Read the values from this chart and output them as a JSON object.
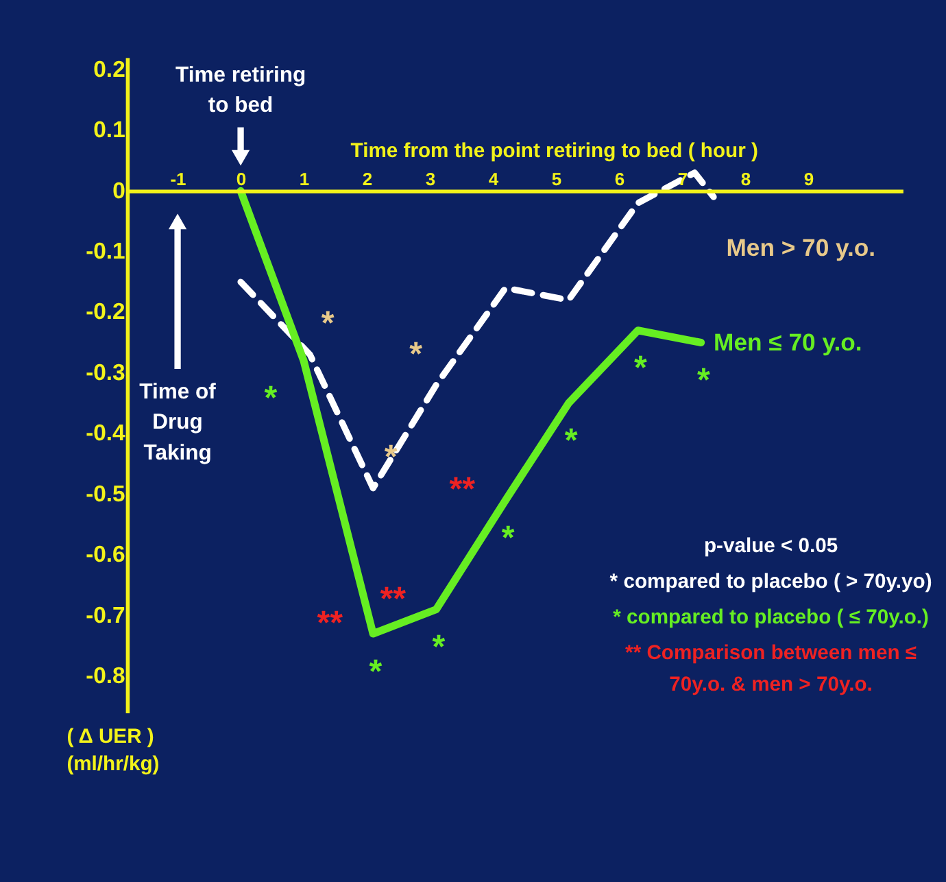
{
  "chart_data": {
    "type": "line",
    "xlabel": "Time from the point retiring to bed ( hour )",
    "ylabel": "( Δ UER )\n(ml/hr/kg)",
    "xlim": [
      -1.8,
      10.5
    ],
    "xticks": [
      -1,
      0,
      1,
      2,
      3,
      4,
      5,
      6,
      7,
      8,
      9
    ],
    "ylim": [
      -0.86,
      0.22
    ],
    "yticks": [
      0.2,
      0.1,
      0,
      -0.1,
      -0.2,
      -0.3,
      -0.4,
      -0.5,
      -0.6,
      -0.7,
      -0.8
    ],
    "grid": false,
    "marker": "none",
    "series": [
      {
        "name": "Men > 70 y.o.",
        "color": "#ffffff",
        "line_style": "dashed",
        "x": [
          0,
          1.1,
          2.1,
          3.1,
          4.2,
          5.2,
          6.3,
          7.2,
          7.5
        ],
        "values": [
          -0.15,
          -0.27,
          -0.49,
          -0.32,
          -0.16,
          -0.18,
          -0.02,
          0.03,
          -0.01
        ]
      },
      {
        "name": "Men ≤ 70 y.o.",
        "color": "#66ee22",
        "line_style": "solid",
        "x": [
          0,
          1.0,
          2.1,
          3.1,
          4.2,
          5.2,
          6.3,
          7.3
        ],
        "values": [
          0,
          -0.28,
          -0.73,
          -0.69,
          -0.51,
          -0.35,
          -0.23,
          -0.25
        ]
      }
    ],
    "annotations": [
      "Time retiring\nto bed",
      "Time of\nDrug\nTaking",
      "*",
      "*",
      "*",
      "*",
      "*",
      "*",
      "*",
      "*",
      "*",
      "*",
      "**",
      "**",
      "**",
      "p-value < 0.05",
      "* compared to placebo ( > 70y.yo)",
      "* compared to placebo ( ≤ 70y.o.)",
      "** Comparison between men ≤\n70y.o. & men > 70y.o."
    ]
  }
}
